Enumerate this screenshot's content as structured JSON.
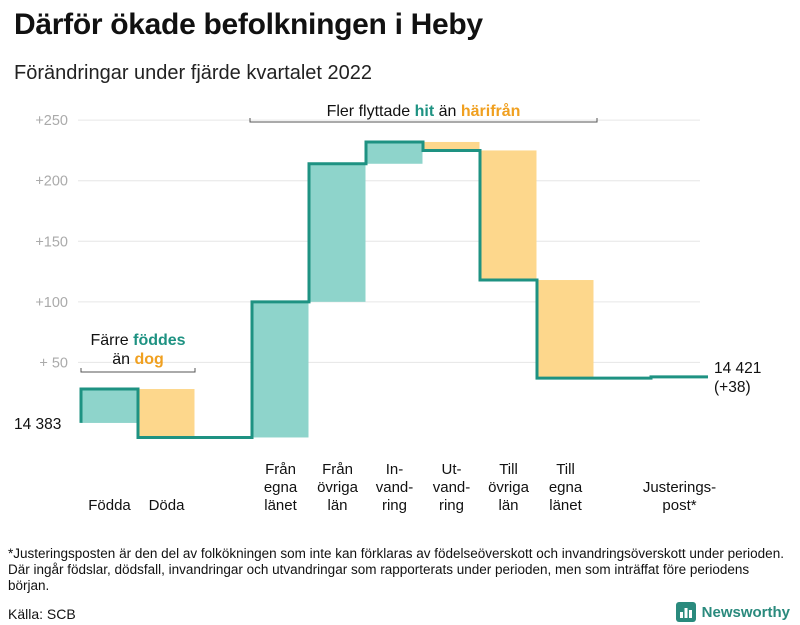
{
  "page": {
    "title": "Därför ökade befolkningen i Heby",
    "subtitle": "Förändringar under fjärde kvartalet 2022",
    "footnote": "*Justeringsposten är den del av folkökningen som inte kan förklaras av födelseöverskott och invandringsöverskott under perioden. Där ingår födslar, dödsfall, invandringar och utvandringar som rapporterats under perioden, men som inträffat före periodens början.",
    "source": "Källa: SCB",
    "brand": "Newsworthy",
    "brand_icon": "bar-chart-logo-icon"
  },
  "colors": {
    "increase_fill": "#8ed4cb",
    "decrease_fill": "#fdd78c",
    "line": "#1e9282",
    "accent_teal": "#1e9282",
    "accent_orange": "#f0a020",
    "tick_text": "#aaaaaa",
    "grid": "#e6e6e6"
  },
  "chart_data": {
    "type": "waterfall",
    "start_label": "14 383",
    "end_label_value": "14 421",
    "end_label_change": "(+38)",
    "y_ticks": [
      {
        "value": 50,
        "label": "+ 50"
      },
      {
        "value": 100,
        "label": "+100"
      },
      {
        "value": 150,
        "label": "+150"
      },
      {
        "value": 200,
        "label": "+200"
      },
      {
        "value": 250,
        "label": "+250"
      }
    ],
    "ylim": [
      -24,
      265
    ],
    "steps": [
      {
        "lines": [
          "Födda"
        ],
        "from": 0,
        "to": 28,
        "kind": "increase"
      },
      {
        "lines": [
          "Döda"
        ],
        "from": 28,
        "to": -12,
        "kind": "decrease"
      },
      {
        "lines": [
          ""
        ],
        "from": -12,
        "to": -12,
        "kind": "flat"
      },
      {
        "lines": [
          "Från",
          "egna",
          "länet"
        ],
        "from": -12,
        "to": 100,
        "kind": "increase"
      },
      {
        "lines": [
          "Från",
          "övriga",
          "län"
        ],
        "from": 100,
        "to": 214,
        "kind": "increase"
      },
      {
        "lines": [
          "In-",
          "vand-",
          "ring"
        ],
        "from": 214,
        "to": 232,
        "kind": "increase"
      },
      {
        "lines": [
          "Ut-",
          "vand-",
          "ring"
        ],
        "from": 232,
        "to": 225,
        "kind": "decrease"
      },
      {
        "lines": [
          "Till",
          "övriga",
          "län"
        ],
        "from": 225,
        "to": 118,
        "kind": "decrease"
      },
      {
        "lines": [
          "Till",
          "egna",
          "länet"
        ],
        "from": 118,
        "to": 37,
        "kind": "decrease"
      },
      {
        "lines": [
          ""
        ],
        "from": 37,
        "to": 37,
        "kind": "flat"
      },
      {
        "lines": [
          "Justerings-",
          "post*"
        ],
        "from": 37,
        "to": 38,
        "kind": "increase"
      }
    ],
    "annotations": [
      {
        "prefix": "Färre ",
        "strong1": "föddes",
        "mid": "än ",
        "strong2": "dog",
        "from_step": 0,
        "to_step": 1
      },
      {
        "prefix": "Fler flyttade ",
        "strong1": "hit",
        "mid": " än ",
        "strong2": "härifrån",
        "from_step": 3,
        "to_step": 8
      }
    ]
  }
}
